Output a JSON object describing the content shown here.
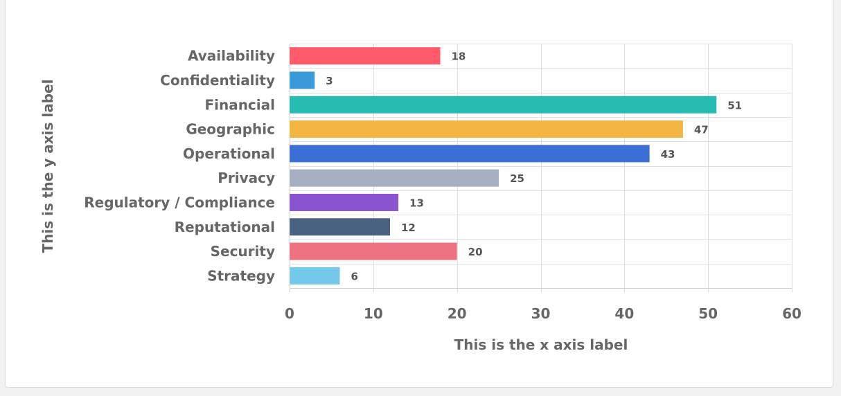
{
  "chart_data": {
    "type": "bar",
    "orientation": "horizontal",
    "categories": [
      "Availability",
      "Confidentiality",
      "Financial",
      "Geographic",
      "Operational",
      "Privacy",
      "Regulatory / Compliance",
      "Reputational",
      "Security",
      "Strategy"
    ],
    "values": [
      18,
      3,
      51,
      47,
      43,
      25,
      13,
      12,
      20,
      6
    ],
    "colors": [
      "#ff5b6b",
      "#3a9ad9",
      "#26bcb2",
      "#f4b642",
      "#3c6fd6",
      "#a6b0c2",
      "#8a54d1",
      "#4a6282",
      "#ee7381",
      "#74c9ea"
    ],
    "xlabel": "This is the x axis label",
    "ylabel": "This is the y axis label",
    "xlim": [
      0,
      60
    ],
    "xticks": [
      0,
      10,
      20,
      30,
      40,
      50,
      60
    ],
    "grid": true,
    "data_labels": true
  }
}
